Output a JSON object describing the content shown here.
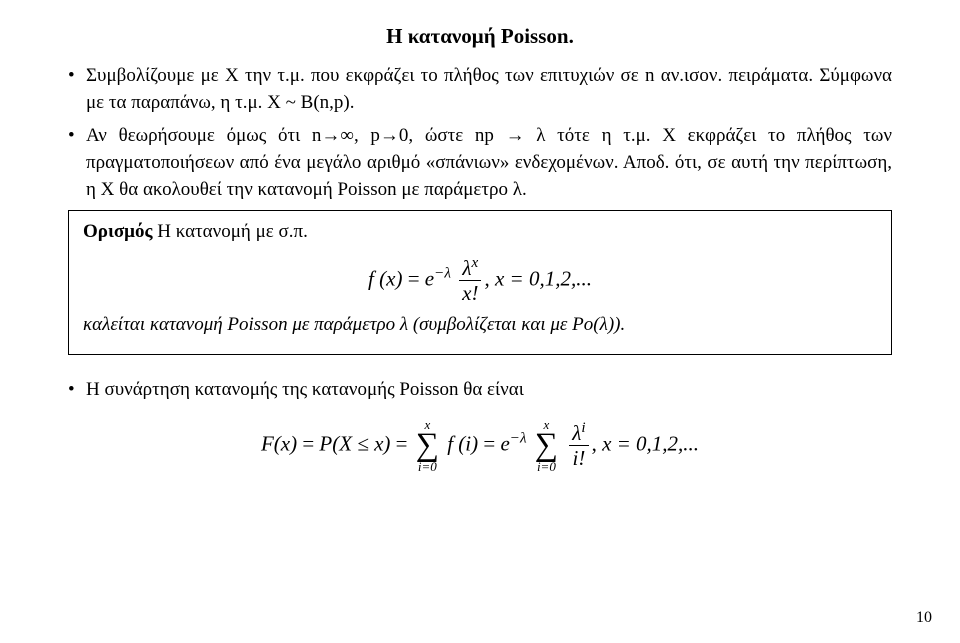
{
  "title": "Η κατανομή Poisson.",
  "b1": "Συμβολίζουμε με Χ την τ.μ. που εκφράζει το πλήθος των επιτυχιών σε n αν.ισον. πειράματα. Σύμφωνα με τα παραπάνω, η τ.μ. X ~ B(n,p).",
  "b2": "Αν θεωρήσουμε όμως ότι n→∞, p→0, ώστε np → λ τότε η τ.μ. Χ εκφράζει το πλήθος των πραγματοποιήσεων από ένα μεγάλο αριθμό «σπάνιων» ενδεχομένων. Αποδ. ότι, σε αυτή την περίπτωση, η Χ θα ακολουθεί την κατανομή Poisson με παράμετρο λ.",
  "def_lead_bold": "Ορισμός",
  "def_lead_rest": " Η κατανομή με σ.π.",
  "def_tail": "καλείται κατανομή Poisson με παράμετρο λ (συμβολίζεται και με Po(λ)).",
  "b3": "Η συνάρτηση κατανομής της κατανομής Poisson θα είναι",
  "pagenum": "10",
  "pmf": {
    "lhs": "f (x)",
    "eq1": " = ",
    "e": "e",
    "exp": "−λ",
    "frac_num": "λ",
    "frac_num_exp": "x",
    "frac_den": "x!",
    "comma_sp": ",    ",
    "domain": "x = 0,1,2,..."
  },
  "cdf": {
    "F": "F(x)",
    "eq": " = ",
    "P": "P(X ≤ x)",
    "eq2": " = ",
    "sum_upper": "x",
    "sum_lower": "i=0",
    "f_i": "f (i)",
    "eq3": " = ",
    "e": "e",
    "exp": "−λ",
    "sum2_upper": "x",
    "sum2_lower": "i=0",
    "frac_num": "λ",
    "frac_num_exp": "i",
    "frac_den": "i!",
    "comma_sp": ",    ",
    "domain": "x = 0,1,2,..."
  }
}
